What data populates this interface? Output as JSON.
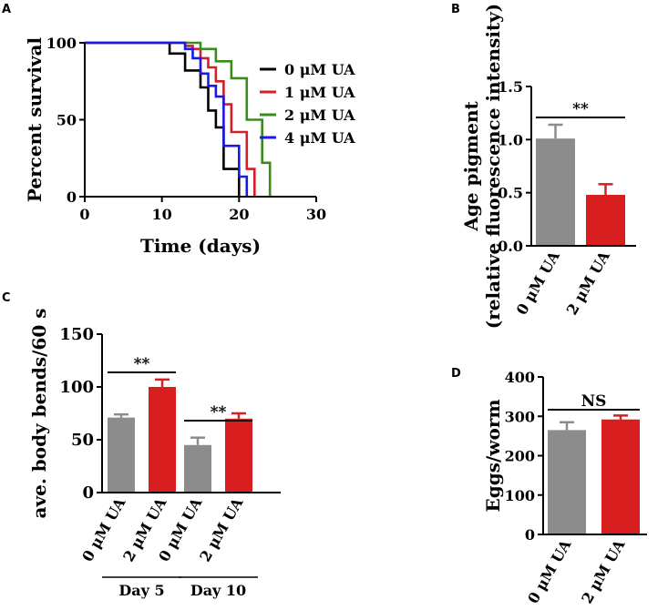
{
  "panels": {
    "a": {
      "letter": "A"
    },
    "b": {
      "letter": "B"
    },
    "c": {
      "letter": "C"
    },
    "d": {
      "letter": "D"
    }
  },
  "chart_data": [
    {
      "type": "line",
      "title": "",
      "xlabel": "Time (days)",
      "ylabel": "Percent survival",
      "xlim": [
        0,
        30
      ],
      "ylim": [
        0,
        100
      ],
      "xticks": [
        "0",
        "10",
        "20",
        "30"
      ],
      "yticks": [
        "0",
        "50",
        "100"
      ],
      "legend_position": "right",
      "series": [
        {
          "name": "0 μM UA",
          "color": "#000000",
          "x": [
            0,
            10,
            11,
            13,
            15,
            16,
            17,
            18,
            20
          ],
          "y": [
            100,
            100,
            93,
            82,
            71,
            56,
            45,
            18,
            0
          ]
        },
        {
          "name": "1 μM UA",
          "color": "#d32027",
          "x": [
            0,
            12,
            13,
            14,
            15,
            16,
            17,
            18,
            19,
            21,
            22
          ],
          "y": [
            100,
            100,
            98,
            96,
            90,
            84,
            75,
            60,
            42,
            18,
            0
          ]
        },
        {
          "name": "2 μM UA",
          "color": "#3a8a1c",
          "x": [
            0,
            13,
            15,
            17,
            19,
            21,
            23,
            24
          ],
          "y": [
            100,
            100,
            96,
            88,
            77,
            50,
            22,
            0
          ]
        },
        {
          "name": "4 μM UA",
          "color": "#1a1ae6",
          "x": [
            0,
            12,
            13,
            14,
            15,
            16,
            17,
            18,
            20,
            21
          ],
          "y": [
            100,
            100,
            96,
            90,
            80,
            72,
            65,
            33,
            13,
            0
          ]
        }
      ]
    },
    {
      "type": "bar",
      "ylabel_lines": [
        "Age pigment",
        "(relative fluorescence intensity)"
      ],
      "categories": [
        "0 μM UA",
        "2 μM UA"
      ],
      "values": [
        1.01,
        0.48
      ],
      "errors": [
        0.13,
        0.1
      ],
      "colors": [
        "#8c8c8c",
        "#d81e1e"
      ],
      "ylim": [
        0,
        1.5
      ],
      "yticks": [
        "0.0",
        "0.5",
        "1.0",
        "1.5"
      ],
      "annotations": [
        {
          "text": "**",
          "between": [
            0,
            1
          ]
        }
      ]
    },
    {
      "type": "bar",
      "ylabel": "ave. body bends/60 s",
      "categories": [
        "0 μM UA",
        "2 μM UA",
        "0 μM UA",
        "2 μM UA"
      ],
      "values": [
        71,
        100,
        45,
        70
      ],
      "errors": [
        3,
        7,
        7,
        5
      ],
      "colors": [
        "#8c8c8c",
        "#d81e1e",
        "#8c8c8c",
        "#d81e1e"
      ],
      "ylim": [
        0,
        150
      ],
      "yticks": [
        "0",
        "50",
        "100",
        "150"
      ],
      "groups": [
        {
          "label": "Day 5",
          "bars": [
            0,
            1
          ]
        },
        {
          "label": "Day 10",
          "bars": [
            2,
            3
          ]
        }
      ],
      "annotations": [
        {
          "text": "**",
          "between": [
            0,
            1
          ]
        },
        {
          "text": "**",
          "between": [
            2,
            3
          ]
        }
      ]
    },
    {
      "type": "bar",
      "ylabel": "Eggs/worm",
      "categories": [
        "0 μM UA",
        "2 μM UA"
      ],
      "values": [
        265,
        292
      ],
      "errors": [
        20,
        10
      ],
      "colors": [
        "#8c8c8c",
        "#d81e1e"
      ],
      "ylim": [
        0,
        400
      ],
      "yticks": [
        "0",
        "100",
        "200",
        "300",
        "400"
      ],
      "annotations": [
        {
          "text": "NS",
          "between": [
            0,
            1
          ]
        }
      ]
    }
  ]
}
